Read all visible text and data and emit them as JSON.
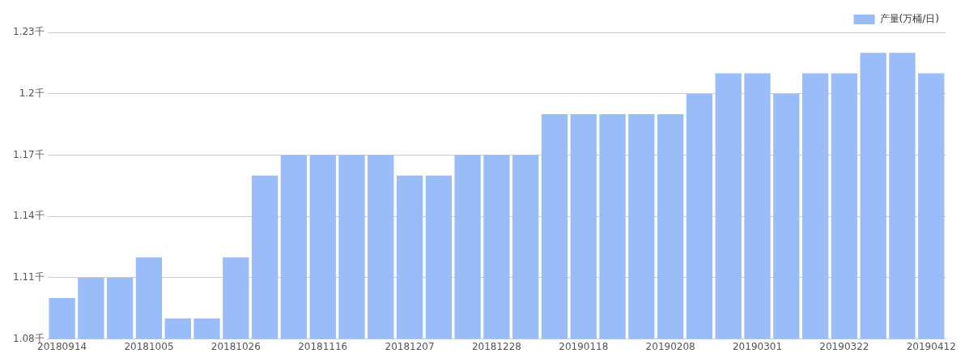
{
  "chart_data": {
    "type": "bar",
    "categories": [
      "20180914",
      null,
      null,
      "20181005",
      null,
      null,
      "20181026",
      null,
      null,
      "20181116",
      null,
      null,
      "20181207",
      null,
      null,
      "20181228",
      null,
      null,
      "20190118",
      null,
      null,
      "20190208",
      null,
      null,
      "20190301",
      null,
      null,
      "20190322",
      null,
      null,
      "20190412"
    ],
    "series": [
      {
        "name": "产量(万桶/日)",
        "color": "#9abcf8",
        "values": [
          1.1,
          1.11,
          1.11,
          1.12,
          1.09,
          1.09,
          1.12,
          1.16,
          1.17,
          1.17,
          1.17,
          1.17,
          1.16,
          1.16,
          1.17,
          1.17,
          1.17,
          1.19,
          1.19,
          1.19,
          1.19,
          1.19,
          1.2,
          1.21,
          1.21,
          1.2,
          1.21,
          1.21,
          1.22,
          1.22,
          1.21
        ]
      }
    ],
    "ylim": [
      1.08,
      1.23
    ],
    "yticks": [
      {
        "value": 1.08,
        "label": "1.08千"
      },
      {
        "value": 1.11,
        "label": "1.11千"
      },
      {
        "value": 1.14,
        "label": "1.14千"
      },
      {
        "value": 1.17,
        "label": "1.17千"
      },
      {
        "value": 1.2,
        "label": "1.2千"
      },
      {
        "value": 1.23,
        "label": "1.23千"
      }
    ],
    "grid": "y",
    "legend": "top right"
  }
}
